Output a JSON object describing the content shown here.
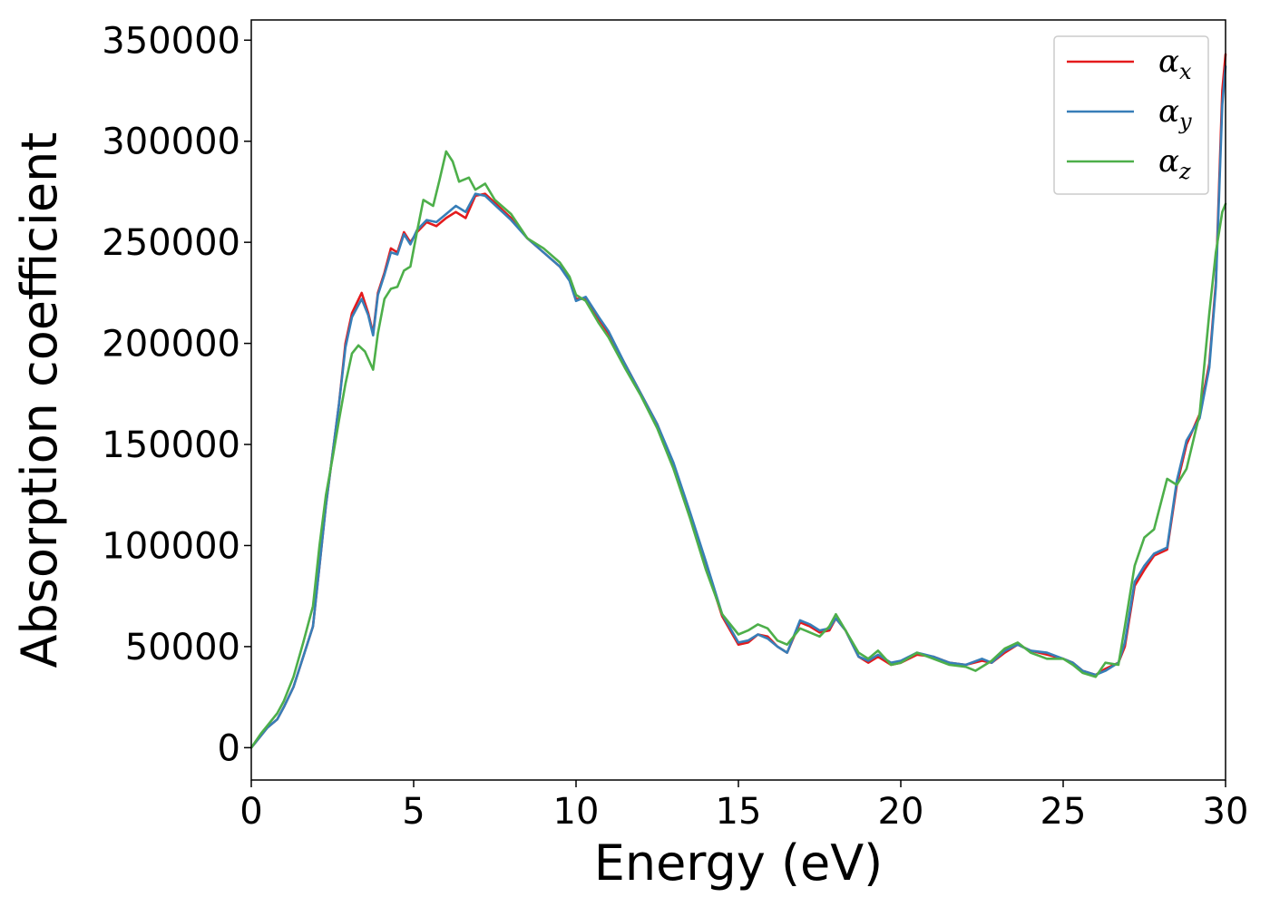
{
  "chart_data": {
    "type": "line",
    "xlabel": "Energy (eV)",
    "ylabel": "Absorption coefficient",
    "xlim": [
      0,
      30
    ],
    "ylim": [
      -16000,
      360000
    ],
    "xticks": [
      0,
      5,
      10,
      15,
      20,
      25,
      30
    ],
    "xtick_labels": [
      "0",
      "5",
      "10",
      "15",
      "20",
      "25",
      "30"
    ],
    "yticks": [
      0,
      50000,
      100000,
      150000,
      200000,
      250000,
      300000,
      350000
    ],
    "ytick_labels": [
      "0",
      "50000",
      "100000",
      "150000",
      "200000",
      "250000",
      "300000",
      "350000"
    ],
    "grid": false,
    "legend_position": "top-right",
    "series": [
      {
        "name": "αx",
        "symbol": "α",
        "subscript": "x",
        "color": "#e41a1c",
        "points": [
          [
            0,
            0
          ],
          [
            0.3,
            6000
          ],
          [
            0.5,
            10000
          ],
          [
            0.8,
            14000
          ],
          [
            1.0,
            20000
          ],
          [
            1.3,
            30000
          ],
          [
            1.6,
            45000
          ],
          [
            1.9,
            60000
          ],
          [
            2.1,
            90000
          ],
          [
            2.3,
            120000
          ],
          [
            2.5,
            145000
          ],
          [
            2.7,
            170000
          ],
          [
            2.9,
            200000
          ],
          [
            3.1,
            215000
          ],
          [
            3.4,
            225000
          ],
          [
            3.6,
            215000
          ],
          [
            3.75,
            205000
          ],
          [
            3.9,
            225000
          ],
          [
            4.1,
            235000
          ],
          [
            4.3,
            247000
          ],
          [
            4.5,
            245000
          ],
          [
            4.7,
            255000
          ],
          [
            4.9,
            250000
          ],
          [
            5.1,
            255000
          ],
          [
            5.4,
            260000
          ],
          [
            5.7,
            258000
          ],
          [
            6.0,
            262000
          ],
          [
            6.3,
            265000
          ],
          [
            6.6,
            262000
          ],
          [
            6.9,
            273000
          ],
          [
            7.2,
            274000
          ],
          [
            7.6,
            268000
          ],
          [
            8.0,
            262000
          ],
          [
            8.5,
            252000
          ],
          [
            9.0,
            245000
          ],
          [
            9.5,
            238000
          ],
          [
            9.8,
            232000
          ],
          [
            10.0,
            222000
          ],
          [
            10.3,
            222000
          ],
          [
            10.7,
            212000
          ],
          [
            11.0,
            205000
          ],
          [
            11.5,
            190000
          ],
          [
            12.0,
            175000
          ],
          [
            12.5,
            160000
          ],
          [
            13.0,
            140000
          ],
          [
            13.5,
            115000
          ],
          [
            14.0,
            90000
          ],
          [
            14.5,
            65000
          ],
          [
            15.0,
            51000
          ],
          [
            15.3,
            52000
          ],
          [
            15.6,
            56000
          ],
          [
            15.9,
            55000
          ],
          [
            16.2,
            50000
          ],
          [
            16.5,
            47000
          ],
          [
            16.9,
            62000
          ],
          [
            17.2,
            60000
          ],
          [
            17.5,
            57000
          ],
          [
            17.8,
            58000
          ],
          [
            18.0,
            64000
          ],
          [
            18.3,
            58000
          ],
          [
            18.7,
            45000
          ],
          [
            19.0,
            42000
          ],
          [
            19.3,
            45000
          ],
          [
            19.7,
            41000
          ],
          [
            20.0,
            42000
          ],
          [
            20.5,
            46000
          ],
          [
            21.0,
            45000
          ],
          [
            21.5,
            42000
          ],
          [
            22.0,
            41000
          ],
          [
            22.5,
            43000
          ],
          [
            22.8,
            42000
          ],
          [
            23.2,
            47000
          ],
          [
            23.6,
            51000
          ],
          [
            24.0,
            48000
          ],
          [
            24.5,
            46000
          ],
          [
            25.0,
            44000
          ],
          [
            25.3,
            42000
          ],
          [
            25.6,
            38000
          ],
          [
            26.0,
            36000
          ],
          [
            26.3,
            39000
          ],
          [
            26.7,
            42000
          ],
          [
            26.9,
            50000
          ],
          [
            27.2,
            80000
          ],
          [
            27.5,
            88000
          ],
          [
            27.8,
            95000
          ],
          [
            28.2,
            98000
          ],
          [
            28.5,
            130000
          ],
          [
            28.8,
            150000
          ],
          [
            29.2,
            165000
          ],
          [
            29.5,
            190000
          ],
          [
            29.7,
            230000
          ],
          [
            29.9,
            325000
          ],
          [
            30.0,
            343000
          ]
        ]
      },
      {
        "name": "αy",
        "symbol": "α",
        "subscript": "y",
        "color": "#377eb8",
        "points": [
          [
            0,
            0
          ],
          [
            0.3,
            6000
          ],
          [
            0.5,
            10000
          ],
          [
            0.8,
            14000
          ],
          [
            1.0,
            20000
          ],
          [
            1.3,
            30000
          ],
          [
            1.6,
            45000
          ],
          [
            1.9,
            60000
          ],
          [
            2.1,
            90000
          ],
          [
            2.3,
            120000
          ],
          [
            2.5,
            145000
          ],
          [
            2.7,
            170000
          ],
          [
            2.9,
            198000
          ],
          [
            3.1,
            213000
          ],
          [
            3.4,
            222000
          ],
          [
            3.6,
            214000
          ],
          [
            3.75,
            204000
          ],
          [
            3.9,
            224000
          ],
          [
            4.1,
            234000
          ],
          [
            4.3,
            245000
          ],
          [
            4.5,
            244000
          ],
          [
            4.7,
            254000
          ],
          [
            4.9,
            249000
          ],
          [
            5.1,
            256000
          ],
          [
            5.4,
            261000
          ],
          [
            5.7,
            260000
          ],
          [
            6.0,
            264000
          ],
          [
            6.3,
            268000
          ],
          [
            6.6,
            265000
          ],
          [
            6.9,
            274000
          ],
          [
            7.2,
            273000
          ],
          [
            7.6,
            267000
          ],
          [
            8.0,
            261000
          ],
          [
            8.5,
            252000
          ],
          [
            9.0,
            245000
          ],
          [
            9.5,
            238000
          ],
          [
            9.8,
            231000
          ],
          [
            10.0,
            221000
          ],
          [
            10.3,
            223000
          ],
          [
            10.7,
            213000
          ],
          [
            11.0,
            206000
          ],
          [
            11.5,
            190000
          ],
          [
            12.0,
            175000
          ],
          [
            12.5,
            160000
          ],
          [
            13.0,
            141000
          ],
          [
            13.5,
            117000
          ],
          [
            14.0,
            92000
          ],
          [
            14.5,
            66000
          ],
          [
            15.0,
            52000
          ],
          [
            15.3,
            53000
          ],
          [
            15.6,
            56000
          ],
          [
            15.9,
            54000
          ],
          [
            16.2,
            50000
          ],
          [
            16.5,
            47000
          ],
          [
            16.9,
            63000
          ],
          [
            17.2,
            61000
          ],
          [
            17.5,
            58000
          ],
          [
            17.8,
            59000
          ],
          [
            18.0,
            64000
          ],
          [
            18.3,
            58000
          ],
          [
            18.7,
            45000
          ],
          [
            19.0,
            43000
          ],
          [
            19.3,
            46000
          ],
          [
            19.7,
            42000
          ],
          [
            20.0,
            43000
          ],
          [
            20.5,
            47000
          ],
          [
            21.0,
            45000
          ],
          [
            21.5,
            42000
          ],
          [
            22.0,
            41000
          ],
          [
            22.5,
            44000
          ],
          [
            22.8,
            42000
          ],
          [
            23.2,
            48000
          ],
          [
            23.6,
            51000
          ],
          [
            24.0,
            48000
          ],
          [
            24.5,
            47000
          ],
          [
            25.0,
            44000
          ],
          [
            25.3,
            42000
          ],
          [
            25.6,
            38000
          ],
          [
            26.0,
            36000
          ],
          [
            26.3,
            38000
          ],
          [
            26.7,
            42000
          ],
          [
            26.9,
            52000
          ],
          [
            27.2,
            82000
          ],
          [
            27.5,
            90000
          ],
          [
            27.8,
            96000
          ],
          [
            28.2,
            99000
          ],
          [
            28.5,
            132000
          ],
          [
            28.8,
            152000
          ],
          [
            29.2,
            163000
          ],
          [
            29.5,
            188000
          ],
          [
            29.7,
            228000
          ],
          [
            29.9,
            318000
          ],
          [
            30.0,
            337000
          ]
        ]
      },
      {
        "name": "αz",
        "symbol": "α",
        "subscript": "z",
        "color": "#4daf4a",
        "points": [
          [
            0,
            0
          ],
          [
            0.3,
            7000
          ],
          [
            0.5,
            11000
          ],
          [
            0.8,
            17000
          ],
          [
            1.0,
            23000
          ],
          [
            1.3,
            35000
          ],
          [
            1.6,
            52000
          ],
          [
            1.9,
            70000
          ],
          [
            2.1,
            100000
          ],
          [
            2.3,
            125000
          ],
          [
            2.5,
            143000
          ],
          [
            2.7,
            162000
          ],
          [
            2.9,
            180000
          ],
          [
            3.1,
            195000
          ],
          [
            3.3,
            199000
          ],
          [
            3.5,
            196000
          ],
          [
            3.75,
            187000
          ],
          [
            3.9,
            205000
          ],
          [
            4.1,
            222000
          ],
          [
            4.3,
            227000
          ],
          [
            4.5,
            228000
          ],
          [
            4.7,
            236000
          ],
          [
            4.9,
            238000
          ],
          [
            5.1,
            255000
          ],
          [
            5.3,
            271000
          ],
          [
            5.6,
            268000
          ],
          [
            5.8,
            281000
          ],
          [
            6.0,
            295000
          ],
          [
            6.2,
            290000
          ],
          [
            6.4,
            280000
          ],
          [
            6.7,
            282000
          ],
          [
            6.9,
            276000
          ],
          [
            7.2,
            279000
          ],
          [
            7.5,
            271000
          ],
          [
            8.0,
            264000
          ],
          [
            8.5,
            252000
          ],
          [
            9.0,
            247000
          ],
          [
            9.5,
            240000
          ],
          [
            9.8,
            233000
          ],
          [
            10.0,
            224000
          ],
          [
            10.3,
            221000
          ],
          [
            10.7,
            210000
          ],
          [
            11.0,
            203000
          ],
          [
            11.5,
            188000
          ],
          [
            12.0,
            174000
          ],
          [
            12.5,
            158000
          ],
          [
            13.0,
            138000
          ],
          [
            13.5,
            114000
          ],
          [
            14.0,
            88000
          ],
          [
            14.5,
            66000
          ],
          [
            15.0,
            56000
          ],
          [
            15.3,
            58000
          ],
          [
            15.6,
            61000
          ],
          [
            15.9,
            59000
          ],
          [
            16.2,
            53000
          ],
          [
            16.5,
            51000
          ],
          [
            16.9,
            59000
          ],
          [
            17.2,
            57000
          ],
          [
            17.5,
            55000
          ],
          [
            17.8,
            60000
          ],
          [
            18.0,
            66000
          ],
          [
            18.3,
            58000
          ],
          [
            18.7,
            47000
          ],
          [
            19.0,
            44000
          ],
          [
            19.3,
            48000
          ],
          [
            19.7,
            41000
          ],
          [
            20.0,
            42000
          ],
          [
            20.5,
            47000
          ],
          [
            21.0,
            44000
          ],
          [
            21.5,
            41000
          ],
          [
            22.0,
            40000
          ],
          [
            22.3,
            38000
          ],
          [
            22.8,
            43000
          ],
          [
            23.2,
            49000
          ],
          [
            23.6,
            52000
          ],
          [
            24.0,
            47000
          ],
          [
            24.5,
            44000
          ],
          [
            25.0,
            44000
          ],
          [
            25.3,
            41000
          ],
          [
            25.6,
            37000
          ],
          [
            26.0,
            35000
          ],
          [
            26.3,
            42000
          ],
          [
            26.7,
            41000
          ],
          [
            26.9,
            60000
          ],
          [
            27.2,
            90000
          ],
          [
            27.5,
            104000
          ],
          [
            27.8,
            108000
          ],
          [
            28.2,
            133000
          ],
          [
            28.5,
            130000
          ],
          [
            28.8,
            138000
          ],
          [
            29.2,
            165000
          ],
          [
            29.5,
            215000
          ],
          [
            29.7,
            245000
          ],
          [
            29.9,
            265000
          ],
          [
            30.0,
            269000
          ]
        ]
      }
    ]
  }
}
